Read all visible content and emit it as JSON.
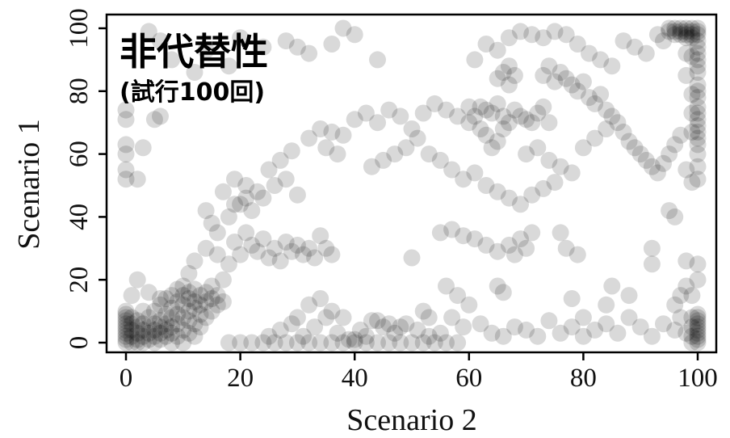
{
  "chart_data": {
    "type": "scatter",
    "title": "非代替性",
    "subtitle": "(試行100回)",
    "xlabel": "Scenario 2",
    "ylabel": "Scenario 1",
    "xlim": [
      0,
      100
    ],
    "ylim": [
      0,
      100
    ],
    "xticks": [
      "0",
      "20",
      "40",
      "60",
      "80",
      "100"
    ],
    "yticks": [
      "0",
      "20",
      "40",
      "60",
      "80",
      "100"
    ],
    "grid": false,
    "marker_color": "#000000",
    "marker_opacity": 0.15,
    "points": [
      [
        0,
        0
      ],
      [
        0,
        1
      ],
      [
        0,
        2
      ],
      [
        0,
        3
      ],
      [
        0,
        4
      ],
      [
        0,
        5
      ],
      [
        0,
        6
      ],
      [
        0,
        7
      ],
      [
        0,
        8
      ],
      [
        0,
        9
      ],
      [
        0,
        10
      ],
      [
        1,
        0
      ],
      [
        1,
        2
      ],
      [
        1,
        4
      ],
      [
        1,
        6
      ],
      [
        1,
        8
      ],
      [
        2,
        0
      ],
      [
        2,
        1
      ],
      [
        2,
        3
      ],
      [
        2,
        5
      ],
      [
        2,
        7
      ],
      [
        3,
        0
      ],
      [
        3,
        2
      ],
      [
        3,
        4
      ],
      [
        3,
        6
      ],
      [
        4,
        1
      ],
      [
        4,
        3
      ],
      [
        4,
        5
      ],
      [
        4,
        8
      ],
      [
        5,
        0
      ],
      [
        5,
        2
      ],
      [
        5,
        4
      ],
      [
        5,
        6
      ],
      [
        5,
        10
      ],
      [
        6,
        1
      ],
      [
        6,
        3
      ],
      [
        6,
        5
      ],
      [
        6,
        7
      ],
      [
        6,
        12
      ],
      [
        7,
        2
      ],
      [
        7,
        4
      ],
      [
        7,
        6
      ],
      [
        7,
        9
      ],
      [
        7,
        14
      ],
      [
        8,
        0
      ],
      [
        8,
        3
      ],
      [
        8,
        5
      ],
      [
        8,
        8
      ],
      [
        8,
        11
      ],
      [
        8,
        15
      ],
      [
        9,
        2
      ],
      [
        9,
        6
      ],
      [
        9,
        9
      ],
      [
        9,
        13
      ],
      [
        9,
        17
      ],
      [
        10,
        0
      ],
      [
        10,
        4
      ],
      [
        10,
        8
      ],
      [
        10,
        12
      ],
      [
        10,
        15
      ],
      [
        10,
        18
      ],
      [
        11,
        3
      ],
      [
        11,
        7
      ],
      [
        11,
        10
      ],
      [
        11,
        14
      ],
      [
        11,
        16
      ],
      [
        12,
        2
      ],
      [
        12,
        6
      ],
      [
        12,
        11
      ],
      [
        12,
        13
      ],
      [
        12,
        17
      ],
      [
        13,
        5
      ],
      [
        13,
        9
      ],
      [
        13,
        12
      ],
      [
        13,
        15
      ],
      [
        14,
        8
      ],
      [
        14,
        13
      ],
      [
        14,
        16
      ],
      [
        15,
        10
      ],
      [
        15,
        14
      ],
      [
        15,
        18
      ],
      [
        16,
        12
      ],
      [
        16,
        15
      ],
      [
        17,
        13
      ],
      [
        17,
        20
      ],
      [
        11,
        22
      ],
      [
        12,
        26
      ],
      [
        14,
        30
      ],
      [
        16,
        28
      ],
      [
        18,
        25
      ],
      [
        19,
        32
      ],
      [
        20,
        28
      ],
      [
        21,
        35
      ],
      [
        22,
        31
      ],
      [
        23,
        29
      ],
      [
        24,
        33
      ],
      [
        25,
        27
      ],
      [
        26,
        30
      ],
      [
        27,
        26
      ],
      [
        28,
        32
      ],
      [
        29,
        29
      ],
      [
        30,
        31
      ],
      [
        31,
        28
      ],
      [
        32,
        30
      ],
      [
        33,
        27
      ],
      [
        34,
        34
      ],
      [
        35,
        30
      ],
      [
        36,
        28
      ],
      [
        18,
        40
      ],
      [
        20,
        44
      ],
      [
        22,
        42
      ],
      [
        24,
        46
      ],
      [
        26,
        50
      ],
      [
        28,
        52
      ],
      [
        30,
        47
      ],
      [
        16,
        35
      ],
      [
        15,
        38
      ],
      [
        14,
        42
      ],
      [
        17,
        48
      ],
      [
        19,
        52
      ],
      [
        21,
        50
      ],
      [
        0,
        52
      ],
      [
        0,
        55
      ],
      [
        0,
        60
      ],
      [
        0,
        63
      ],
      [
        0,
        71
      ],
      [
        0,
        74
      ],
      [
        2,
        52
      ],
      [
        3,
        62
      ],
      [
        5,
        71
      ],
      [
        6,
        72
      ],
      [
        1,
        15
      ],
      [
        3,
        10
      ],
      [
        4,
        16
      ],
      [
        2,
        20
      ],
      [
        6,
        14
      ],
      [
        18,
        0
      ],
      [
        20,
        0
      ],
      [
        22,
        0
      ],
      [
        24,
        0
      ],
      [
        26,
        0
      ],
      [
        28,
        0
      ],
      [
        30,
        0
      ],
      [
        32,
        0
      ],
      [
        34,
        0
      ],
      [
        36,
        0
      ],
      [
        38,
        0
      ],
      [
        40,
        0
      ],
      [
        42,
        0
      ],
      [
        44,
        0
      ],
      [
        46,
        0
      ],
      [
        48,
        0
      ],
      [
        50,
        0
      ],
      [
        52,
        0
      ],
      [
        54,
        0
      ],
      [
        56,
        0
      ],
      [
        58,
        0
      ],
      [
        25,
        2
      ],
      [
        27,
        4
      ],
      [
        29,
        6
      ],
      [
        31,
        2
      ],
      [
        33,
        5
      ],
      [
        35,
        8
      ],
      [
        37,
        3
      ],
      [
        39,
        1
      ],
      [
        41,
        4
      ],
      [
        43,
        7
      ],
      [
        45,
        5
      ],
      [
        47,
        3
      ],
      [
        49,
        6
      ],
      [
        51,
        4
      ],
      [
        53,
        2
      ],
      [
        55,
        3
      ],
      [
        57,
        8
      ],
      [
        59,
        5
      ],
      [
        62,
        6
      ],
      [
        64,
        3
      ],
      [
        66,
        2
      ],
      [
        68,
        5
      ],
      [
        70,
        4
      ],
      [
        72,
        2
      ],
      [
        74,
        7
      ],
      [
        76,
        3
      ],
      [
        78,
        5
      ],
      [
        80,
        2
      ],
      [
        82,
        4
      ],
      [
        84,
        6
      ],
      [
        86,
        3
      ],
      [
        88,
        8
      ],
      [
        90,
        5
      ],
      [
        92,
        2
      ],
      [
        94,
        6
      ],
      [
        96,
        4
      ],
      [
        98,
        3
      ],
      [
        100,
        0
      ],
      [
        100,
        1
      ],
      [
        100,
        2
      ],
      [
        100,
        3
      ],
      [
        100,
        4
      ],
      [
        100,
        5
      ],
      [
        100,
        6
      ],
      [
        100,
        7
      ],
      [
        100,
        8
      ],
      [
        100,
        9
      ],
      [
        99,
        0
      ],
      [
        99,
        2
      ],
      [
        99,
        5
      ],
      [
        99,
        8
      ],
      [
        100,
        20
      ],
      [
        100,
        25
      ],
      [
        98,
        26
      ],
      [
        96,
        12
      ],
      [
        97,
        15
      ],
      [
        99,
        15
      ],
      [
        98,
        18
      ],
      [
        97,
        8
      ],
      [
        96,
        40
      ],
      [
        95,
        42
      ],
      [
        92,
        25
      ],
      [
        92,
        30
      ],
      [
        88,
        15
      ],
      [
        85,
        18
      ],
      [
        84,
        12
      ],
      [
        80,
        8
      ],
      [
        78,
        14
      ],
      [
        77,
        30
      ],
      [
        76,
        35
      ],
      [
        79,
        28
      ],
      [
        70,
        30
      ],
      [
        68,
        28
      ],
      [
        66,
        16
      ],
      [
        65,
        18
      ],
      [
        60,
        12
      ],
      [
        58,
        15
      ],
      [
        56,
        18
      ],
      [
        53,
        8
      ],
      [
        52,
        10
      ],
      [
        50,
        27
      ],
      [
        44,
        7
      ],
      [
        46,
        6
      ],
      [
        48,
        5
      ],
      [
        42,
        2
      ],
      [
        40,
        1
      ],
      [
        100,
        52
      ],
      [
        100,
        56
      ],
      [
        100,
        60
      ],
      [
        100,
        63
      ],
      [
        100,
        65
      ],
      [
        100,
        67
      ],
      [
        100,
        69
      ],
      [
        100,
        71
      ],
      [
        100,
        73
      ],
      [
        100,
        75
      ],
      [
        100,
        78
      ],
      [
        100,
        80
      ],
      [
        100,
        82
      ],
      [
        100,
        86
      ],
      [
        100,
        88
      ],
      [
        100,
        90
      ],
      [
        100,
        92
      ],
      [
        100,
        94
      ],
      [
        100,
        96
      ],
      [
        100,
        98
      ],
      [
        100,
        99
      ],
      [
        100,
        100
      ],
      [
        99,
        100
      ],
      [
        98,
        100
      ],
      [
        97,
        100
      ],
      [
        96,
        100
      ],
      [
        95,
        100
      ],
      [
        99,
        99
      ],
      [
        98,
        99
      ],
      [
        97,
        99
      ],
      [
        96,
        99
      ],
      [
        95,
        99
      ],
      [
        99,
        98
      ],
      [
        98,
        98
      ],
      [
        97,
        98
      ],
      [
        96,
        98
      ],
      [
        99,
        97
      ],
      [
        98,
        97
      ],
      [
        99,
        51
      ],
      [
        98,
        55
      ],
      [
        99,
        67
      ],
      [
        99,
        73
      ],
      [
        99,
        79
      ],
      [
        98,
        85
      ],
      [
        99,
        91
      ],
      [
        98,
        92
      ],
      [
        60,
        70
      ],
      [
        61,
        72
      ],
      [
        62,
        75
      ],
      [
        63,
        74
      ],
      [
        64,
        73
      ],
      [
        65,
        76
      ],
      [
        66,
        72
      ],
      [
        67,
        70
      ],
      [
        68,
        74
      ],
      [
        69,
        72
      ],
      [
        70,
        71
      ],
      [
        71,
        70
      ],
      [
        72,
        73
      ],
      [
        73,
        75
      ],
      [
        74,
        70
      ],
      [
        62,
        68
      ],
      [
        63,
        66
      ],
      [
        64,
        62
      ],
      [
        65,
        64
      ],
      [
        66,
        68
      ],
      [
        67,
        82
      ],
      [
        66,
        86
      ],
      [
        65,
        84
      ],
      [
        67,
        88
      ],
      [
        68,
        85
      ],
      [
        73,
        85
      ],
      [
        74,
        88
      ],
      [
        75,
        83
      ],
      [
        76,
        86
      ],
      [
        77,
        84
      ],
      [
        78,
        82
      ],
      [
        79,
        80
      ],
      [
        80,
        83
      ],
      [
        81,
        78
      ],
      [
        82,
        76
      ],
      [
        83,
        79
      ],
      [
        84,
        74
      ],
      [
        85,
        72
      ],
      [
        86,
        70
      ],
      [
        87,
        67
      ],
      [
        88,
        64
      ],
      [
        89,
        62
      ],
      [
        90,
        60
      ],
      [
        91,
        58
      ],
      [
        92,
        56
      ],
      [
        93,
        54
      ],
      [
        94,
        57
      ],
      [
        95,
        60
      ],
      [
        96,
        63
      ],
      [
        97,
        66
      ],
      [
        70,
        60
      ],
      [
        72,
        62
      ],
      [
        74,
        58
      ],
      [
        76,
        56
      ],
      [
        78,
        54
      ],
      [
        80,
        62
      ],
      [
        82,
        65
      ],
      [
        84,
        68
      ],
      [
        61,
        90
      ],
      [
        63,
        95
      ],
      [
        65,
        93
      ],
      [
        67,
        97
      ],
      [
        69,
        99
      ],
      [
        71,
        98
      ],
      [
        73,
        97
      ],
      [
        75,
        99
      ],
      [
        77,
        98
      ],
      [
        79,
        95
      ],
      [
        81,
        92
      ],
      [
        83,
        90
      ],
      [
        85,
        88
      ],
      [
        87,
        96
      ],
      [
        89,
        94
      ],
      [
        91,
        92
      ],
      [
        93,
        98
      ],
      [
        94,
        96
      ],
      [
        38,
        100
      ],
      [
        40,
        98
      ],
      [
        36,
        95
      ],
      [
        44,
        90
      ],
      [
        30,
        94
      ],
      [
        32,
        92
      ],
      [
        28,
        96
      ],
      [
        24,
        94
      ],
      [
        20,
        97
      ],
      [
        18,
        88
      ],
      [
        14,
        93
      ],
      [
        12,
        86
      ],
      [
        8,
        90
      ],
      [
        6,
        96
      ],
      [
        4,
        99
      ],
      [
        34,
        68
      ],
      [
        36,
        67
      ],
      [
        38,
        66
      ],
      [
        40,
        71
      ],
      [
        42,
        73
      ],
      [
        44,
        70
      ],
      [
        46,
        74
      ],
      [
        48,
        72
      ],
      [
        50,
        68
      ],
      [
        52,
        73
      ],
      [
        54,
        76
      ],
      [
        56,
        74
      ],
      [
        58,
        72
      ],
      [
        60,
        75
      ],
      [
        32,
        65
      ],
      [
        35,
        62
      ],
      [
        37,
        60
      ],
      [
        43,
        56
      ],
      [
        45,
        58
      ],
      [
        47,
        60
      ],
      [
        49,
        62
      ],
      [
        51,
        65
      ],
      [
        53,
        60
      ],
      [
        55,
        58
      ],
      [
        57,
        55
      ],
      [
        59,
        52
      ],
      [
        61,
        54
      ],
      [
        63,
        50
      ],
      [
        65,
        48
      ],
      [
        67,
        46
      ],
      [
        69,
        44
      ],
      [
        71,
        47
      ],
      [
        73,
        49
      ],
      [
        75,
        51
      ],
      [
        25,
        55
      ],
      [
        27,
        58
      ],
      [
        29,
        61
      ],
      [
        23,
        48
      ],
      [
        21,
        46
      ],
      [
        19,
        44
      ],
      [
        55,
        35
      ],
      [
        57,
        36
      ],
      [
        59,
        34
      ],
      [
        61,
        33
      ],
      [
        63,
        31
      ],
      [
        65,
        29
      ],
      [
        67,
        31
      ],
      [
        69,
        33
      ],
      [
        71,
        35
      ],
      [
        30,
        8
      ],
      [
        32,
        12
      ],
      [
        34,
        14
      ],
      [
        36,
        10
      ],
      [
        38,
        8
      ]
    ]
  }
}
